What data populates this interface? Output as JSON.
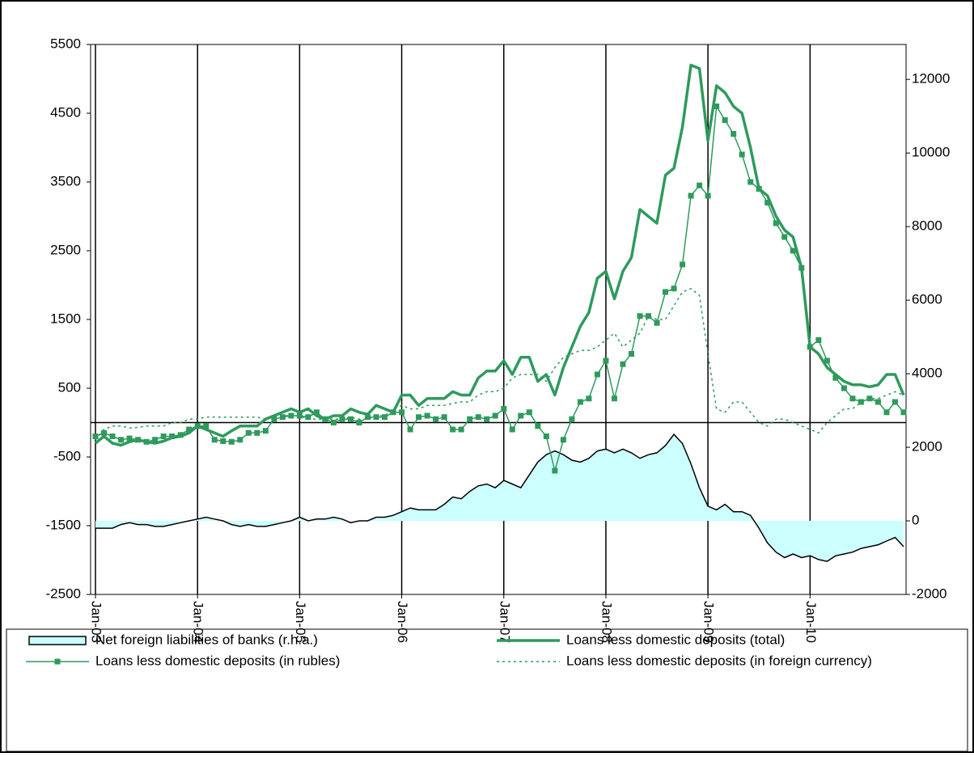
{
  "chart_data": {
    "type": "line",
    "categories": [
      "Jan-03",
      null,
      null,
      null,
      null,
      null,
      null,
      null,
      null,
      null,
      null,
      null,
      "Jan-04",
      null,
      null,
      null,
      null,
      null,
      null,
      null,
      null,
      null,
      null,
      null,
      "Jan-05",
      null,
      null,
      null,
      null,
      null,
      null,
      null,
      null,
      null,
      null,
      null,
      "Jan-06",
      null,
      null,
      null,
      null,
      null,
      null,
      null,
      null,
      null,
      null,
      null,
      "Jan-07",
      null,
      null,
      null,
      null,
      null,
      null,
      null,
      null,
      null,
      null,
      null,
      "Jan-08",
      null,
      null,
      null,
      null,
      null,
      null,
      null,
      null,
      null,
      null,
      null,
      "Jan-09",
      null,
      null,
      null,
      null,
      null,
      null,
      null,
      null,
      null,
      null,
      null,
      "Jan-10",
      null,
      null,
      null,
      null,
      null,
      null,
      null,
      null,
      null,
      null,
      null
    ],
    "series": [
      {
        "name": "Net foreign liabilities of banks (r.h.a.)",
        "kind": "area",
        "color": "#ccffff",
        "stroke": "#000000",
        "axis": "y2",
        "values": [
          -200,
          -200,
          -200,
          -100,
          -50,
          -100,
          -100,
          -150,
          -150,
          -100,
          -50,
          0,
          50,
          100,
          50,
          0,
          -100,
          -150,
          -100,
          -150,
          -150,
          -100,
          -50,
          0,
          100,
          0,
          50,
          50,
          100,
          50,
          -50,
          0,
          0,
          100,
          100,
          150,
          250,
          350,
          300,
          300,
          300,
          450,
          650,
          600,
          800,
          950,
          1000,
          900,
          1100,
          1000,
          900,
          1250,
          1600,
          1800,
          1900,
          1800,
          1650,
          1600,
          1700,
          1900,
          1950,
          1850,
          1950,
          1850,
          1700,
          1800,
          1850,
          2050,
          2350,
          2100,
          1550,
          900,
          400,
          300,
          450,
          250,
          250,
          150,
          -200,
          -600,
          -850,
          -1000,
          -900,
          -1000,
          -950,
          -1050,
          -1100,
          -950,
          -900,
          -850,
          -750,
          -700,
          -650,
          -550,
          -450,
          -700
        ]
      },
      {
        "name": "Loans less domestic deposits (total)",
        "kind": "line",
        "color": "#2e9a5c",
        "line_style": "solid",
        "line_width": 3.5,
        "values": [
          -300,
          -200,
          -300,
          -330,
          -280,
          -250,
          -280,
          -300,
          -270,
          -220,
          -200,
          -150,
          -50,
          -100,
          -150,
          -200,
          -120,
          -50,
          -50,
          -50,
          50,
          100,
          150,
          200,
          150,
          200,
          100,
          50,
          100,
          100,
          200,
          150,
          120,
          250,
          200,
          150,
          400,
          400,
          250,
          350,
          350,
          350,
          450,
          400,
          400,
          650,
          750,
          750,
          900,
          700,
          950,
          950,
          600,
          700,
          400,
          800,
          1100,
          1400,
          1600,
          2100,
          2200,
          1800,
          2200,
          2400,
          3100,
          3000,
          2900,
          3600,
          3700,
          4300,
          5200,
          5150,
          4100,
          4900,
          4800,
          4600,
          4500,
          4000,
          3400,
          3300,
          3000,
          2800,
          2700,
          2250,
          1100,
          1000,
          800,
          700,
          600,
          550,
          550,
          520,
          550,
          700,
          700,
          400
        ]
      },
      {
        "name": "Loans less domestic deposits (in rubles)",
        "kind": "line",
        "color": "#2e9a5c",
        "line_style": "solid",
        "line_width": 1.5,
        "marker": "square",
        "values": [
          -200,
          -150,
          -200,
          -250,
          -230,
          -250,
          -280,
          -250,
          -200,
          -200,
          -180,
          -100,
          -50,
          -50,
          -250,
          -270,
          -280,
          -250,
          -150,
          -150,
          -120,
          50,
          80,
          100,
          100,
          80,
          150,
          50,
          0,
          50,
          50,
          0,
          80,
          80,
          80,
          150,
          150,
          -100,
          80,
          100,
          50,
          80,
          -100,
          -100,
          50,
          80,
          50,
          100,
          200,
          -100,
          100,
          150,
          -50,
          -200,
          -700,
          -250,
          50,
          300,
          350,
          700,
          900,
          350,
          850,
          1000,
          1550,
          1550,
          1450,
          1900,
          1950,
          2300,
          3300,
          3450,
          3300,
          4600,
          4400,
          4200,
          3900,
          3500,
          3400,
          3200,
          2900,
          2700,
          2500,
          2250,
          1100,
          1200,
          900,
          650,
          500,
          350,
          300,
          350,
          300,
          150,
          300,
          150
        ]
      },
      {
        "name": "Loans less domestic deposits (in foreign currency)",
        "kind": "line",
        "color": "#2e9a5c",
        "line_style": "dotted",
        "line_width": 1.5,
        "values": [
          -250,
          -100,
          -50,
          -50,
          -80,
          -70,
          -50,
          -50,
          -50,
          0,
          0,
          50,
          50,
          80,
          80,
          80,
          80,
          80,
          80,
          80,
          50,
          80,
          100,
          100,
          100,
          50,
          50,
          50,
          50,
          50,
          80,
          50,
          50,
          100,
          100,
          200,
          250,
          200,
          200,
          250,
          250,
          250,
          280,
          300,
          300,
          400,
          450,
          450,
          500,
          650,
          700,
          700,
          700,
          600,
          800,
          950,
          1000,
          1050,
          1050,
          1100,
          1200,
          1300,
          1100,
          1200,
          1300,
          1550,
          1500,
          1500,
          1700,
          1900,
          1950,
          1850,
          1000,
          200,
          150,
          300,
          300,
          150,
          0,
          -50,
          50,
          50,
          0,
          -50,
          -100,
          -150,
          0,
          100,
          200,
          200,
          300,
          350,
          350,
          400,
          450,
          400
        ]
      }
    ],
    "ylim": [
      -2500,
      5500
    ],
    "yticks": [
      5500,
      4500,
      3500,
      2500,
      1500,
      500,
      -500,
      -1500,
      -2500
    ],
    "y2lim": [
      -2000,
      12950
    ],
    "y2ticks": [
      12000,
      10000,
      8000,
      6000,
      4000,
      2000,
      0,
      -2000
    ],
    "grid": "x",
    "hline": 0,
    "legend": "bottom"
  }
}
